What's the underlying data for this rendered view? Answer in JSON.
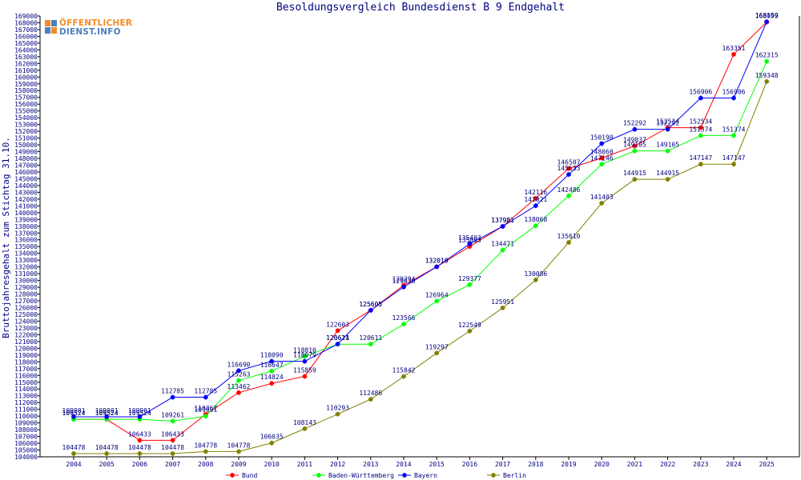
{
  "chart_data": {
    "type": "line",
    "title": "Besoldungsvergleich Bundesdienst B 9 Endgehalt",
    "ylabel": "Bruttojahresgehalt zum Stichtag 31.10.",
    "xlabel": "",
    "ylim": [
      104000,
      169000
    ],
    "categories": [
      "2004",
      "2005",
      "2006",
      "2007",
      "2008",
      "2009",
      "2010",
      "2011",
      "2012",
      "2013",
      "2014",
      "2015",
      "2016",
      "2017",
      "2018",
      "2019",
      "2020",
      "2021",
      "2022",
      "2023",
      "2024",
      "2025"
    ],
    "series": [
      {
        "name": "Bund",
        "color": "#ff0000",
        "values": [
          109524,
          109524,
          106433,
          106433,
          110267,
          113462,
          114824,
          115859,
          122603,
          125605,
          129294,
          132019,
          135003,
          137981,
          142116,
          146507,
          148060,
          149837,
          152534,
          152534,
          163351,
          168099
        ]
      },
      {
        "name": "Baden-Württemberg",
        "color": "#00ff00",
        "values": [
          109524,
          109524,
          109524,
          109261,
          109991,
          115263,
          116647,
          118810,
          120611,
          120611,
          123566,
          126964,
          129377,
          134471,
          138068,
          142486,
          147146,
          149105,
          149105,
          151374,
          151374,
          162315
        ]
      },
      {
        "name": "Bayern",
        "color": "#0000ff",
        "values": [
          109901,
          109901,
          109901,
          112785,
          112785,
          116690,
          118090,
          118079,
          120624,
          125605,
          129036,
          132019,
          135403,
          137981,
          141021,
          145633,
          150190,
          152292,
          152292,
          156906,
          156906,
          168159
        ]
      },
      {
        "name": "Berlin",
        "color": "#808000",
        "values": [
          104478,
          104478,
          104478,
          104478,
          104778,
          104778,
          106035,
          108143,
          110293,
          112486,
          115842,
          119297,
          122549,
          125951,
          130086,
          135610,
          141403,
          144915,
          144915,
          147147,
          147147,
          159348
        ]
      }
    ],
    "legend_position": "bottom",
    "grid": false
  },
  "logo": {
    "line1": "ÖFFENTLICHER",
    "line2": "DIENST.INFO"
  }
}
